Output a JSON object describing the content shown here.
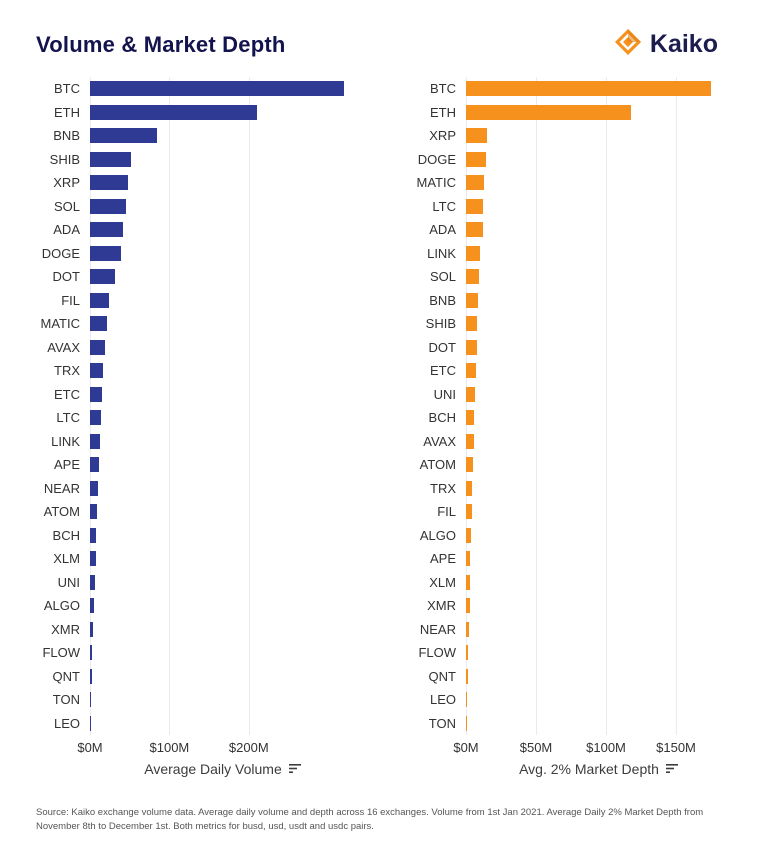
{
  "header": {
    "title": "Volume & Market Depth",
    "brand": "Kaiko"
  },
  "colors": {
    "navy_bar": "#2e3a93",
    "orange_bar": "#f6911e",
    "title_navy": "#13134e",
    "logo_orange": "#f6911e"
  },
  "chart_data": [
    {
      "type": "bar",
      "orientation": "horizontal",
      "xlabel": "Average Daily Volume",
      "color": "#2e3a93",
      "xlim": [
        0,
        335
      ],
      "grid": true,
      "ticks": [
        {
          "label": "$0M",
          "value": 0
        },
        {
          "label": "$100M",
          "value": 100
        },
        {
          "label": "$200M",
          "value": 200
        }
      ],
      "categories": [
        "BTC",
        "ETH",
        "BNB",
        "SHIB",
        "XRP",
        "SOL",
        "ADA",
        "DOGE",
        "DOT",
        "FIL",
        "MATIC",
        "AVAX",
        "TRX",
        "ETC",
        "LTC",
        "LINK",
        "APE",
        "NEAR",
        "ATOM",
        "BCH",
        "XLM",
        "UNI",
        "ALGO",
        "XMR",
        "FLOW",
        "QNT",
        "TON",
        "LEO"
      ],
      "values": [
        320,
        210,
        85,
        52,
        48,
        45,
        41,
        39,
        31,
        24,
        21,
        19,
        17,
        15,
        14,
        12,
        11,
        10,
        9,
        8,
        7,
        6,
        5,
        4,
        3,
        2,
        1,
        0.8
      ]
    },
    {
      "type": "bar",
      "orientation": "horizontal",
      "xlabel": "Avg. 2% Market Depth",
      "color": "#f6911e",
      "xlim": [
        0,
        190
      ],
      "grid": true,
      "ticks": [
        {
          "label": "$0M",
          "value": 0
        },
        {
          "label": "$50M",
          "value": 50
        },
        {
          "label": "$100M",
          "value": 100
        },
        {
          "label": "$150M",
          "value": 150
        }
      ],
      "categories": [
        "BTC",
        "ETH",
        "XRP",
        "DOGE",
        "MATIC",
        "LTC",
        "ADA",
        "LINK",
        "SOL",
        "BNB",
        "SHIB",
        "DOT",
        "ETC",
        "UNI",
        "BCH",
        "AVAX",
        "ATOM",
        "TRX",
        "FIL",
        "ALGO",
        "APE",
        "XLM",
        "XMR",
        "NEAR",
        "FLOW",
        "QNT",
        "LEO",
        "TON"
      ],
      "values": [
        175,
        118,
        15,
        14,
        13,
        12.5,
        12,
        10,
        9,
        8.5,
        8,
        7.5,
        7,
        6.5,
        6,
        5.5,
        5,
        4.5,
        4,
        3.5,
        3.2,
        3,
        3,
        2.5,
        1.5,
        1.2,
        0.8,
        0.7
      ]
    }
  ],
  "footer": {
    "source": "Source: Kaiko exchange volume data. Average daily volume and depth across 16 exchanges. Volume from 1st Jan 2021. Average Daily 2% Market Depth from November 8th to December 1st. Both metrics for busd, usd, usdt and usdc pairs."
  }
}
